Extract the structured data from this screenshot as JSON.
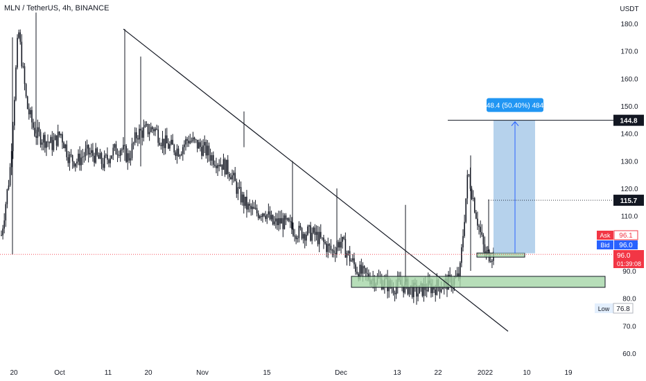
{
  "symbol_title": "MLN / TetherUS, 4h, BINANCE",
  "currency_label": "USDT",
  "colors": {
    "up": "#26a69a",
    "down": "#ef5350",
    "candle": "#131722",
    "zone_fill": "#a5d6a7",
    "zone_stroke": "#131722",
    "measure_fill": "#9ec3e6",
    "measure_line": "#2962ff",
    "ask_bg": "#f23645",
    "bid_bg": "#2962ff",
    "grid": "#ffffff"
  },
  "chart_data": {
    "type": "candlestick",
    "y_axis": {
      "min": 55,
      "max": 185,
      "ticks": [
        "60.0",
        "70.0",
        "80.0",
        "90.0",
        "100.0",
        "110.0",
        "120.0",
        "130.0",
        "140.0",
        "150.0",
        "160.0",
        "170.0",
        "180.0"
      ]
    },
    "x_axis": {
      "ticks": [
        "20",
        "Oct",
        "11",
        "20",
        "Nov",
        "15",
        "Dec",
        "13",
        "22",
        "2022",
        "10",
        "19"
      ]
    },
    "price_series_close": [
      103,
      126,
      178,
      150,
      140,
      138,
      136,
      140,
      131,
      130,
      133,
      132,
      129,
      133,
      135,
      131,
      140,
      141,
      142,
      137,
      135,
      134,
      138,
      136,
      134,
      131,
      129,
      126,
      118,
      113,
      111,
      112,
      107,
      108,
      106,
      104,
      104,
      103,
      100,
      97,
      101,
      95,
      90,
      88,
      87,
      86,
      84,
      85,
      84,
      82,
      84,
      84,
      85,
      86,
      88,
      126,
      110,
      96,
      96
    ],
    "trendline": {
      "from": [
        0.19,
        178
      ],
      "to": [
        0.79,
        68
      ]
    },
    "measure": {
      "label": "48.4 (50.40%) 484",
      "from_value": 96.4,
      "to_value": 144.8
    },
    "level_lines": [
      {
        "value": 144.8,
        "label": "144.8"
      },
      {
        "value": 115.7,
        "label": "115.7"
      }
    ],
    "zones": [
      {
        "top": 88.0,
        "bottom": 84.0
      },
      {
        "top": 96.5,
        "bottom": 95.0
      }
    ],
    "ask": {
      "label": "Ask",
      "value": "96.1"
    },
    "bid": {
      "label": "Bid",
      "value": "96.0"
    },
    "current": {
      "value": "96.0",
      "countdown": "01:39:08"
    },
    "low": {
      "label": "Low",
      "value": "76.8"
    }
  }
}
